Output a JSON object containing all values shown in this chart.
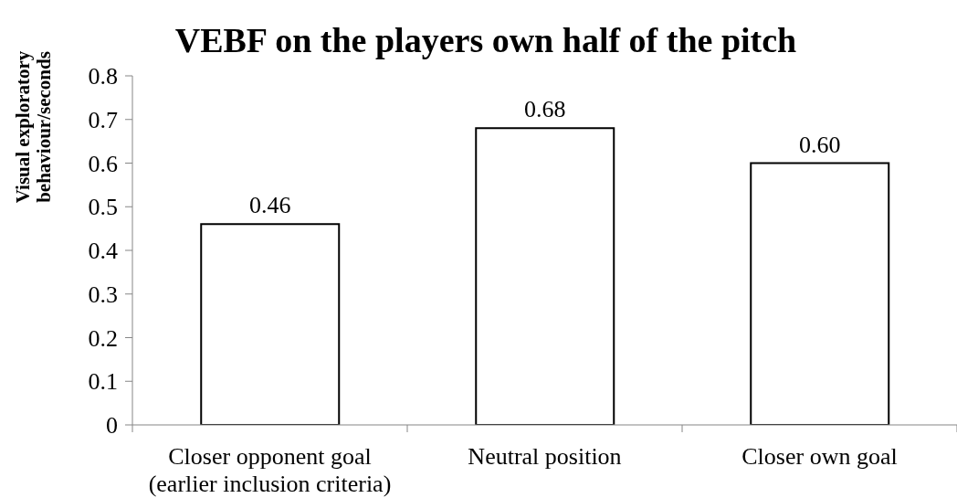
{
  "chart_data": {
    "type": "bar",
    "title": "VEBF on the players own half of the pitch",
    "ylabel": "Visual exploratory\nbehaviour/seconds",
    "categories": [
      "Closer opponent goal\n(earlier inclusion criteria)",
      "Neutral position",
      "Closer own goal"
    ],
    "values": [
      0.46,
      0.68,
      0.6
    ],
    "value_labels": [
      "0.46",
      "0.68",
      "0.60"
    ],
    "color": "#ffffff",
    "ylim": [
      0,
      0.8
    ],
    "yticks": [
      0,
      0.1,
      0.2,
      0.3,
      0.4,
      0.5,
      0.6,
      0.7,
      0.8
    ]
  }
}
